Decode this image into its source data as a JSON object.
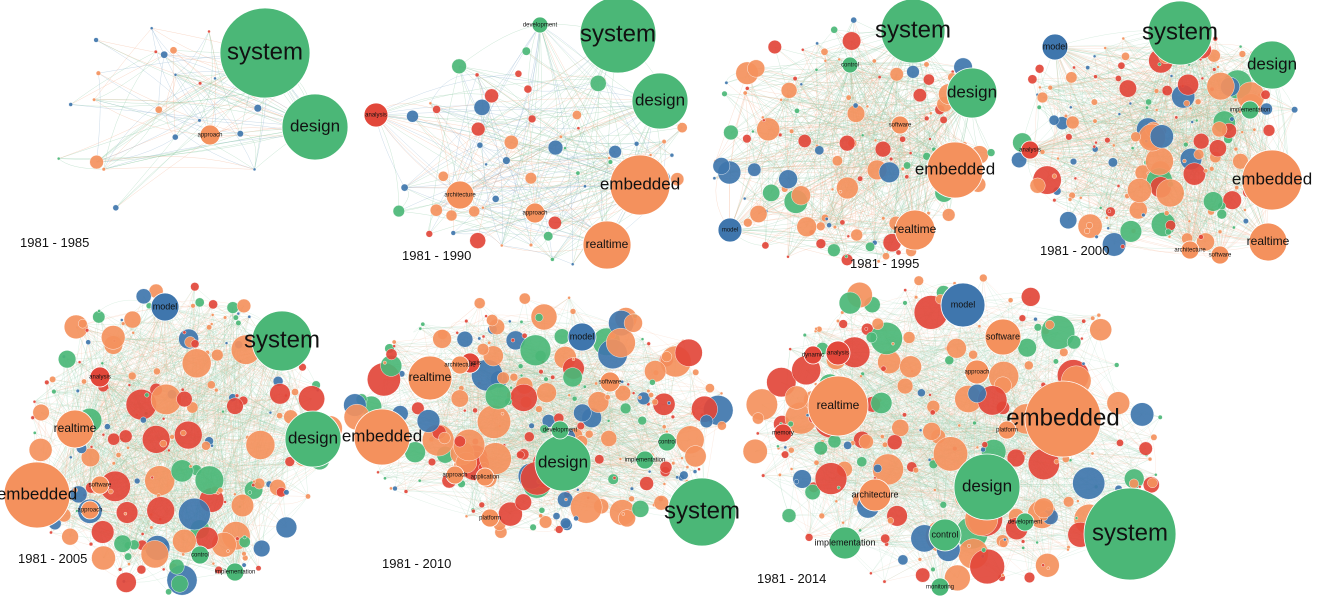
{
  "colors": {
    "green": "#4bb777",
    "orange": "#f4915d",
    "red": "#e2473a",
    "blue": "#3f76ad",
    "edge_green": "#8fcaa6",
    "edge_orange": "#f2b08e",
    "edge_blue": "#8eb1cf"
  },
  "panels": [
    {
      "period": "1981 - 1985",
      "density": 0.06,
      "labels": [
        {
          "text": "system",
          "color": "green",
          "size": "xl"
        },
        {
          "text": "design",
          "color": "green",
          "size": "l"
        },
        {
          "text": "approach",
          "color": "orange",
          "size": "xs"
        }
      ]
    },
    {
      "period": "1981 - 1990",
      "density": 0.18,
      "labels": [
        {
          "text": "system",
          "color": "green",
          "size": "xl"
        },
        {
          "text": "design",
          "color": "green",
          "size": "l"
        },
        {
          "text": "embedded",
          "color": "orange",
          "size": "l"
        },
        {
          "text": "realtime",
          "color": "orange",
          "size": "m"
        },
        {
          "text": "analysis",
          "color": "red",
          "size": "xs"
        },
        {
          "text": "architecture",
          "color": "orange",
          "size": "xs"
        },
        {
          "text": "approach",
          "color": "orange",
          "size": "xs"
        },
        {
          "text": "development",
          "color": "green",
          "size": "xs"
        }
      ]
    },
    {
      "period": "1981 - 1995",
      "density": 0.45,
      "labels": [
        {
          "text": "system",
          "color": "green",
          "size": "xl"
        },
        {
          "text": "design",
          "color": "green",
          "size": "l"
        },
        {
          "text": "embedded",
          "color": "orange",
          "size": "l"
        },
        {
          "text": "realtime",
          "color": "orange",
          "size": "m"
        },
        {
          "text": "software",
          "color": "orange",
          "size": "xs"
        },
        {
          "text": "model",
          "color": "blue",
          "size": "xs"
        },
        {
          "text": "control",
          "color": "green",
          "size": "xs"
        }
      ]
    },
    {
      "period": "1981 - 2000",
      "density": 0.7,
      "labels": [
        {
          "text": "system",
          "color": "green",
          "size": "xl"
        },
        {
          "text": "design",
          "color": "green",
          "size": "l"
        },
        {
          "text": "embedded",
          "color": "orange",
          "size": "l"
        },
        {
          "text": "realtime",
          "color": "orange",
          "size": "m"
        },
        {
          "text": "model",
          "color": "blue",
          "size": "s"
        },
        {
          "text": "implementation",
          "color": "green",
          "size": "xs"
        },
        {
          "text": "software",
          "color": "orange",
          "size": "xs"
        },
        {
          "text": "analysis",
          "color": "red",
          "size": "xs"
        },
        {
          "text": "architecture",
          "color": "orange",
          "size": "xs"
        }
      ]
    },
    {
      "period": "1981 - 2005",
      "density": 0.85,
      "labels": [
        {
          "text": "system",
          "color": "green",
          "size": "xl"
        },
        {
          "text": "design",
          "color": "green",
          "size": "l"
        },
        {
          "text": "embedded",
          "color": "orange",
          "size": "l"
        },
        {
          "text": "realtime",
          "color": "orange",
          "size": "m"
        },
        {
          "text": "model",
          "color": "blue",
          "size": "s"
        },
        {
          "text": "analysis",
          "color": "red",
          "size": "xs"
        },
        {
          "text": "software",
          "color": "orange",
          "size": "xs"
        },
        {
          "text": "approach",
          "color": "orange",
          "size": "xs"
        },
        {
          "text": "control",
          "color": "green",
          "size": "xs"
        },
        {
          "text": "implementation",
          "color": "green",
          "size": "xs"
        }
      ]
    },
    {
      "period": "1981 - 2010",
      "density": 0.95,
      "labels": [
        {
          "text": "system",
          "color": "green",
          "size": "xl"
        },
        {
          "text": "design",
          "color": "green",
          "size": "l"
        },
        {
          "text": "embedded",
          "color": "orange",
          "size": "l"
        },
        {
          "text": "realtime",
          "color": "orange",
          "size": "m"
        },
        {
          "text": "model",
          "color": "blue",
          "size": "s"
        },
        {
          "text": "analysis",
          "color": "red",
          "size": "xs"
        },
        {
          "text": "software",
          "color": "orange",
          "size": "xs"
        },
        {
          "text": "approach",
          "color": "orange",
          "size": "xs"
        },
        {
          "text": "architecture",
          "color": "orange",
          "size": "xs"
        },
        {
          "text": "implementation",
          "color": "green",
          "size": "xs"
        },
        {
          "text": "control",
          "color": "green",
          "size": "xs"
        },
        {
          "text": "development",
          "color": "green",
          "size": "xs"
        },
        {
          "text": "application",
          "color": "orange",
          "size": "xs"
        },
        {
          "text": "platform",
          "color": "orange",
          "size": "xs"
        }
      ]
    },
    {
      "period": "1981 - 2014",
      "density": 1.0,
      "labels": [
        {
          "text": "system",
          "color": "green",
          "size": "xl"
        },
        {
          "text": "embedded",
          "color": "orange",
          "size": "xl"
        },
        {
          "text": "design",
          "color": "green",
          "size": "l"
        },
        {
          "text": "realtime",
          "color": "orange",
          "size": "m"
        },
        {
          "text": "model",
          "color": "blue",
          "size": "s"
        },
        {
          "text": "software",
          "color": "orange",
          "size": "s"
        },
        {
          "text": "analysis",
          "color": "red",
          "size": "xs"
        },
        {
          "text": "approach",
          "color": "orange",
          "size": "xs"
        },
        {
          "text": "architecture",
          "color": "orange",
          "size": "s"
        },
        {
          "text": "implementation",
          "color": "green",
          "size": "s"
        },
        {
          "text": "control",
          "color": "green",
          "size": "s"
        },
        {
          "text": "development",
          "color": "green",
          "size": "xs"
        },
        {
          "text": "platform",
          "color": "orange",
          "size": "xs"
        },
        {
          "text": "dynamic",
          "color": "red",
          "size": "xs"
        },
        {
          "text": "memory",
          "color": "red",
          "size": "xs"
        },
        {
          "text": "monitoring",
          "color": "green",
          "size": "xs"
        }
      ]
    }
  ]
}
